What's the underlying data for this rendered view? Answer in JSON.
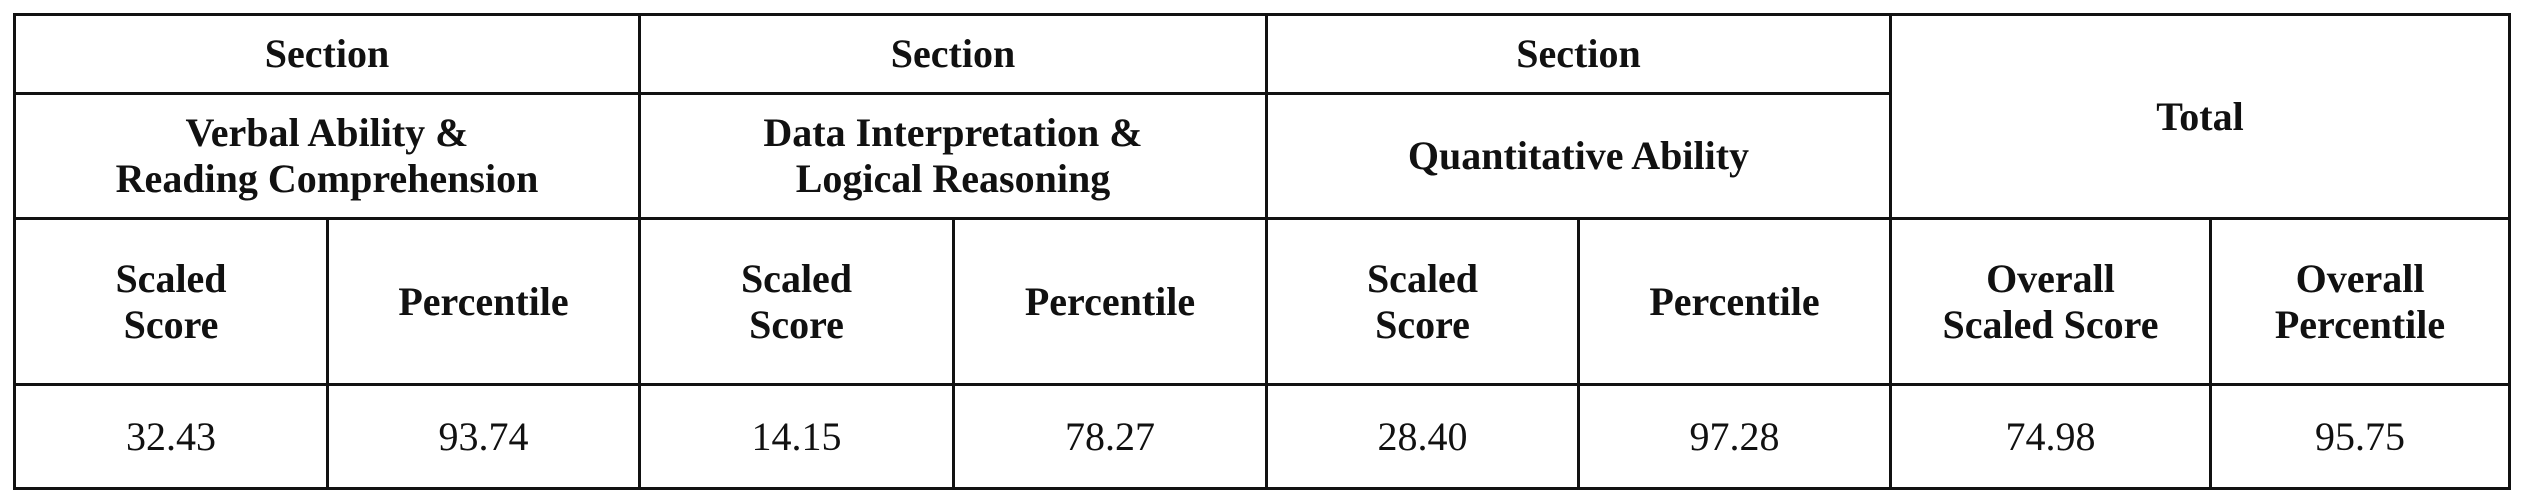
{
  "table": {
    "header_row": [
      "Section",
      "Section",
      "Section",
      "Total"
    ],
    "section_names": [
      "Verbal Ability &\nReading Comprehension",
      "Data Interpretation &\nLogical Reasoning",
      "Quantitative Ability"
    ],
    "subheaders": [
      "Scaled\nScore",
      "Percentile",
      "Scaled\nScore",
      "Percentile",
      "Scaled\nScore",
      "Percentile",
      "Overall\nScaled Score",
      "Overall\nPercentile"
    ],
    "values": [
      "32.43",
      "93.74",
      "14.15",
      "78.27",
      "28.40",
      "97.28",
      "74.98",
      "95.75"
    ]
  }
}
